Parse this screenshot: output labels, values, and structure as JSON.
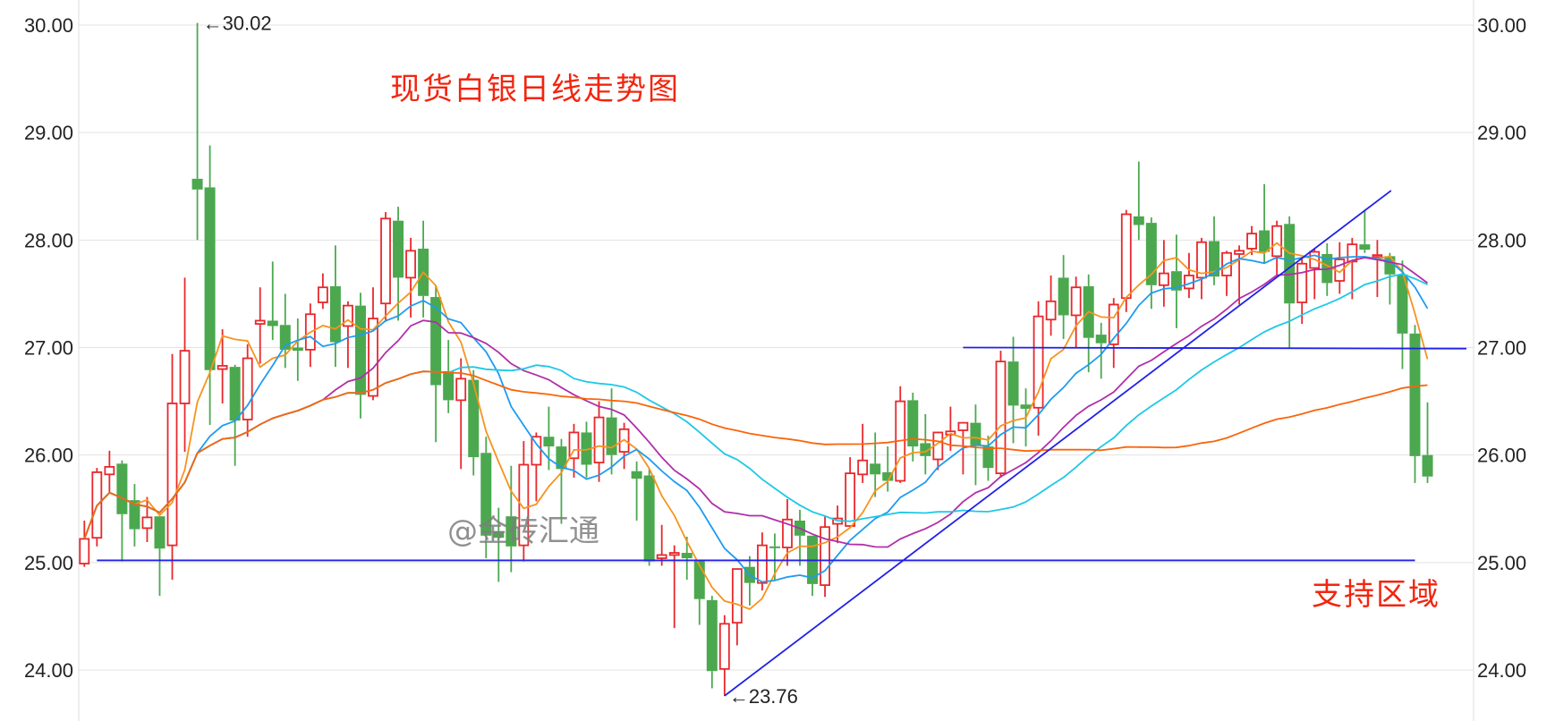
{
  "chart_data": {
    "type": "candlestick",
    "title": "现货白银日线走势图",
    "ylim": [
      23.53,
      30.23
    ],
    "yticks": [
      "24.00",
      "25.00",
      "26.00",
      "27.00",
      "28.00",
      "29.00",
      "30.00"
    ],
    "grid": true,
    "colors": {
      "up": "#e8282c",
      "down": "#4ba84f",
      "grid": "#e3e3e3",
      "trendline": "#2020e8"
    },
    "candles_ohlc": [
      [
        24.99,
        25.39,
        24.96,
        25.22
      ],
      [
        25.23,
        25.88,
        25.15,
        25.84
      ],
      [
        25.82,
        26.04,
        25.64,
        25.89
      ],
      [
        25.92,
        25.95,
        25.01,
        25.45
      ],
      [
        25.58,
        25.73,
        25.15,
        25.31
      ],
      [
        25.32,
        25.61,
        25.19,
        25.42
      ],
      [
        25.43,
        25.43,
        24.69,
        25.13
      ],
      [
        25.16,
        26.94,
        24.84,
        26.48
      ],
      [
        26.48,
        27.65,
        26.03,
        26.97
      ],
      [
        28.57,
        30.02,
        28.0,
        28.47
      ],
      [
        28.49,
        28.88,
        26.28,
        26.79
      ],
      [
        26.8,
        27.17,
        26.48,
        26.83
      ],
      [
        26.82,
        26.84,
        25.9,
        26.32
      ],
      [
        26.33,
        27.03,
        26.17,
        26.9
      ],
      [
        27.22,
        27.56,
        26.85,
        27.25
      ],
      [
        27.25,
        27.8,
        27.07,
        27.2
      ],
      [
        27.21,
        27.5,
        26.81,
        26.98
      ],
      [
        27.0,
        27.27,
        26.69,
        26.97
      ],
      [
        26.98,
        27.41,
        26.82,
        27.31
      ],
      [
        27.42,
        27.69,
        27.36,
        27.56
      ],
      [
        27.57,
        27.95,
        26.82,
        27.05
      ],
      [
        27.2,
        27.43,
        26.81,
        27.39
      ],
      [
        27.39,
        27.51,
        26.34,
        26.56
      ],
      [
        26.55,
        27.56,
        26.51,
        27.27
      ],
      [
        27.41,
        28.26,
        27.24,
        28.2
      ],
      [
        28.18,
        28.31,
        27.25,
        27.65
      ],
      [
        27.65,
        28.02,
        27.28,
        27.9
      ],
      [
        27.92,
        28.18,
        27.28,
        27.48
      ],
      [
        27.47,
        27.58,
        26.12,
        26.65
      ],
      [
        26.78,
        27.07,
        26.39,
        26.51
      ],
      [
        26.51,
        26.9,
        25.87,
        26.71
      ],
      [
        26.7,
        26.79,
        25.81,
        25.98
      ],
      [
        26.02,
        26.17,
        25.04,
        25.25
      ],
      [
        25.29,
        25.51,
        24.82,
        25.23
      ],
      [
        25.43,
        25.9,
        24.91,
        25.15
      ],
      [
        25.16,
        26.13,
        25.01,
        25.91
      ],
      [
        25.91,
        26.21,
        25.57,
        26.17
      ],
      [
        26.17,
        26.45,
        25.86,
        26.08
      ],
      [
        26.08,
        26.15,
        25.36,
        25.87
      ],
      [
        25.97,
        26.29,
        25.79,
        26.21
      ],
      [
        26.21,
        26.31,
        25.79,
        25.91
      ],
      [
        25.93,
        26.5,
        25.75,
        26.35
      ],
      [
        26.35,
        26.62,
        25.82,
        26.0
      ],
      [
        26.03,
        26.3,
        25.87,
        26.24
      ],
      [
        25.85,
        25.94,
        25.39,
        25.78
      ],
      [
        25.81,
        25.87,
        24.97,
        25.01
      ],
      [
        25.04,
        25.35,
        24.97,
        25.07
      ],
      [
        25.07,
        25.16,
        24.39,
        25.09
      ],
      [
        25.09,
        25.24,
        24.84,
        25.04
      ],
      [
        25.02,
        25.02,
        24.42,
        24.66
      ],
      [
        24.65,
        24.69,
        23.83,
        23.99
      ],
      [
        24.01,
        24.51,
        23.76,
        24.43
      ],
      [
        24.44,
        24.94,
        24.23,
        24.94
      ],
      [
        24.96,
        25.06,
        24.6,
        24.81
      ],
      [
        24.81,
        25.28,
        24.74,
        25.16
      ],
      [
        25.15,
        25.27,
        24.84,
        25.14
      ],
      [
        25.14,
        25.59,
        24.97,
        25.4
      ],
      [
        25.39,
        25.49,
        24.97,
        25.25
      ],
      [
        25.25,
        25.25,
        24.69,
        24.8
      ],
      [
        24.79,
        25.44,
        24.68,
        25.33
      ],
      [
        25.36,
        25.53,
        25.18,
        25.41
      ],
      [
        25.34,
        25.98,
        25.32,
        25.83
      ],
      [
        25.82,
        26.29,
        25.74,
        25.95
      ],
      [
        25.92,
        26.21,
        25.61,
        25.82
      ],
      [
        25.84,
        26.08,
        25.66,
        25.76
      ],
      [
        25.76,
        26.64,
        25.74,
        26.5
      ],
      [
        26.51,
        26.58,
        25.94,
        26.08
      ],
      [
        26.11,
        26.38,
        25.82,
        25.99
      ],
      [
        25.96,
        26.21,
        25.86,
        26.21
      ],
      [
        26.19,
        26.45,
        26.04,
        26.22
      ],
      [
        26.23,
        26.3,
        25.82,
        26.3
      ],
      [
        26.3,
        26.47,
        25.72,
        26.09
      ],
      [
        26.08,
        26.18,
        25.76,
        25.88
      ],
      [
        25.83,
        26.97,
        25.79,
        26.87
      ],
      [
        26.87,
        27.1,
        26.11,
        26.46
      ],
      [
        26.47,
        26.62,
        26.08,
        26.43
      ],
      [
        26.44,
        27.43,
        26.18,
        27.29
      ],
      [
        27.26,
        27.67,
        27.11,
        27.43
      ],
      [
        27.65,
        27.86,
        27.08,
        27.3
      ],
      [
        27.3,
        27.66,
        27.0,
        27.56
      ],
      [
        27.57,
        27.68,
        26.77,
        27.09
      ],
      [
        27.12,
        27.23,
        26.71,
        27.04
      ],
      [
        27.03,
        27.46,
        26.81,
        27.4
      ],
      [
        27.46,
        28.28,
        27.33,
        28.24
      ],
      [
        28.22,
        28.73,
        28.0,
        28.14
      ],
      [
        28.16,
        28.21,
        27.36,
        27.58
      ],
      [
        27.58,
        28.0,
        27.38,
        27.69
      ],
      [
        27.71,
        28.05,
        27.18,
        27.53
      ],
      [
        27.55,
        27.88,
        27.46,
        27.67
      ],
      [
        27.65,
        28.02,
        27.45,
        27.98
      ],
      [
        27.99,
        28.22,
        27.58,
        27.66
      ],
      [
        27.67,
        27.9,
        27.48,
        27.88
      ],
      [
        27.87,
        27.95,
        27.4,
        27.9
      ],
      [
        27.92,
        28.13,
        27.86,
        28.06
      ],
      [
        28.09,
        28.52,
        27.78,
        27.89
      ],
      [
        27.85,
        28.18,
        27.67,
        28.13
      ],
      [
        28.15,
        28.22,
        27.0,
        27.41
      ],
      [
        27.42,
        27.84,
        27.22,
        27.78
      ],
      [
        27.74,
        27.92,
        27.45,
        27.89
      ],
      [
        27.87,
        27.97,
        27.48,
        27.6
      ],
      [
        27.62,
        27.98,
        27.5,
        27.82
      ],
      [
        27.8,
        28.02,
        27.45,
        27.96
      ],
      [
        27.96,
        28.28,
        27.88,
        27.91
      ],
      [
        27.85,
        28.0,
        27.47,
        27.86
      ],
      [
        27.85,
        27.88,
        27.4,
        27.68
      ],
      [
        27.68,
        27.81,
        26.8,
        27.13
      ],
      [
        27.13,
        27.21,
        25.74,
        25.99
      ],
      [
        26.0,
        26.49,
        25.74,
        25.8
      ]
    ],
    "moving_averages": [
      {
        "period": 5,
        "color": "#f7931e"
      },
      {
        "period": 10,
        "color": "#1e9bf0"
      },
      {
        "period": 20,
        "color": "#b02fa8"
      },
      {
        "period": 30,
        "color": "#1ec8e6"
      },
      {
        "period": 60,
        "color": "#f9650a"
      }
    ],
    "annotations": {
      "high_label": "←30.02",
      "high_value": 30.02,
      "low_label": "←23.76",
      "low_value": 23.76,
      "support_label": "支持区域"
    },
    "trendlines": [
      {
        "kind": "support-horizontal",
        "price": 25.02
      },
      {
        "kind": "resistance-horizontal",
        "price": 27.0
      },
      {
        "kind": "rising-trendline",
        "from_price": 23.76,
        "to_price": 28.46
      }
    ]
  },
  "watermark": "@金砖汇通"
}
